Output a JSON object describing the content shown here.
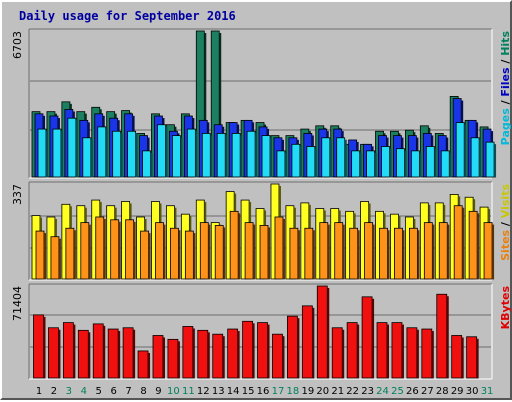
{
  "chart_data": {
    "title": "Daily usage for September 2016",
    "days": [
      "1",
      "2",
      "3",
      "4",
      "5",
      "6",
      "7",
      "8",
      "9",
      "10",
      "11",
      "12",
      "13",
      "14",
      "15",
      "16",
      "17",
      "18",
      "19",
      "20",
      "21",
      "22",
      "23",
      "24",
      "25",
      "26",
      "27",
      "28",
      "29",
      "30",
      "31"
    ],
    "weekend_days": [
      "3",
      "4",
      "10",
      "11",
      "17",
      "18",
      "24",
      "25",
      "31"
    ],
    "colors": {
      "hits": "#1c8060",
      "files": "#1a34e8",
      "pages": "#22dcf7",
      "visits": "#ffff22",
      "sites": "#ff9218",
      "kbytes": "#f01010",
      "weekday_label": "#000000",
      "weekend_label": "#00805c",
      "title": "#0000a0"
    },
    "charts": [
      {
        "type": "bar",
        "id": "hits-files-pages",
        "ymax_label": "6703",
        "ylim": [
          0,
          6703
        ],
        "legend": [
          {
            "text": "Pages",
            "color": "#00b8d8"
          },
          {
            "text": " / ",
            "color": "#000000"
          },
          {
            "text": "Files",
            "color": "#0000c0"
          },
          {
            "text": " / ",
            "color": "#000000"
          },
          {
            "text": "Hits",
            "color": "#00805c"
          }
        ],
        "series": [
          {
            "name": "Hits",
            "values": [
              3000,
              3000,
              3450,
              3000,
              3200,
              3000,
              3050,
              2000,
              2900,
              2400,
              2900,
              6703,
              6703,
              2500,
              2600,
              2500,
              1900,
              1900,
              2200,
              2350,
              2350,
              1500,
              1500,
              2100,
              2100,
              2150,
              2350,
              2000,
              3700,
              2600,
              2300
            ]
          },
          {
            "name": "Files",
            "values": [
              2900,
              2800,
              3100,
              2600,
              2900,
              2700,
              2900,
              1900,
              2800,
              2100,
              2800,
              2600,
              2400,
              2500,
              2600,
              2300,
              1800,
              1800,
              2000,
              2200,
              2200,
              1700,
              1500,
              1900,
              1900,
              1900,
              2000,
              1900,
              3600,
              2600,
              2200
            ]
          },
          {
            "name": "Pages",
            "values": [
              2200,
              2200,
              2700,
              1800,
              2300,
              2100,
              2100,
              1200,
              2400,
              1900,
              2200,
              2000,
              2000,
              2000,
              2100,
              1900,
              1200,
              1500,
              1400,
              1800,
              1800,
              1200,
              1200,
              1400,
              1300,
              1200,
              1400,
              1200,
              2500,
              1800,
              1600
            ]
          }
        ]
      },
      {
        "type": "bar",
        "id": "visits-sites",
        "ymax_label": "337",
        "ylim": [
          0,
          337
        ],
        "legend": [
          {
            "text": "Sites",
            "color": "#e88010"
          },
          {
            "text": " / ",
            "color": "#000000"
          },
          {
            "text": "Visits",
            "color": "#c8c800"
          }
        ],
        "series": [
          {
            "name": "Visits",
            "values": [
              225,
              220,
              265,
              260,
              280,
              260,
              275,
              220,
              275,
              260,
              230,
              280,
              200,
              310,
              280,
              250,
              337,
              260,
              270,
              250,
              250,
              240,
              275,
              240,
              230,
              220,
              270,
              270,
              300,
              290,
              255
            ]
          },
          {
            "name": "Sites",
            "values": [
              170,
              150,
              180,
              200,
              220,
              210,
              210,
              170,
              200,
              180,
              170,
              200,
              190,
              240,
              200,
              190,
              220,
              180,
              180,
              200,
              200,
              180,
              200,
              180,
              180,
              180,
              200,
              200,
              260,
              240,
              200
            ]
          }
        ]
      },
      {
        "type": "bar",
        "id": "kbytes",
        "ymax_label": "71404",
        "ylim": [
          0,
          71404
        ],
        "legend": [
          {
            "text": "KBytes",
            "color": "#e00000"
          }
        ],
        "series": [
          {
            "name": "KBytes",
            "values": [
              49000,
              39000,
              43000,
              37000,
              42000,
              38000,
              39000,
              21000,
              33000,
              30000,
              40000,
              37000,
              34000,
              38000,
              44000,
              43000,
              34000,
              48000,
              56000,
              71404,
              39000,
              43000,
              63000,
              43000,
              43000,
              39000,
              38000,
              65000,
              33000,
              32000,
              0
            ]
          }
        ]
      }
    ]
  }
}
